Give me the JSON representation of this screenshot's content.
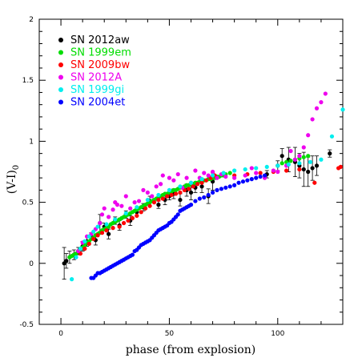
{
  "chart_data": {
    "type": "scatter",
    "xlabel": "phase (from explosion)",
    "ylabel_main": "(V-I)",
    "ylabel_sub": "0",
    "xlim": [
      -10,
      130
    ],
    "ylim": [
      -0.5,
      2
    ],
    "xticks": [
      0,
      50,
      100
    ],
    "yticks": [
      -0.5,
      0,
      0.5,
      1,
      1.5,
      2
    ],
    "yticklabels": [
      "-0.5",
      "0",
      "0.5",
      "1",
      "1.5",
      "2"
    ],
    "legend_position": "top-left",
    "series": [
      {
        "name": "SN 2012aw",
        "color": "#000000",
        "errorbars": true,
        "points": [
          [
            1.5,
            0.0,
            0.13
          ],
          [
            2.5,
            0.02,
            0.06
          ],
          [
            4,
            0.05,
            0.05
          ],
          [
            6,
            0.07,
            0.04
          ],
          [
            8,
            0.1,
            0.03
          ],
          [
            10,
            0.14,
            0.04
          ],
          [
            12,
            0.18,
            0.04
          ],
          [
            14,
            0.22,
            0.03
          ],
          [
            16,
            0.19,
            0.04
          ],
          [
            18,
            0.33,
            0.07
          ],
          [
            20,
            0.3,
            0.03
          ],
          [
            22,
            0.24,
            0.04
          ],
          [
            25,
            0.35,
            0.03
          ],
          [
            27,
            0.31,
            0.04
          ],
          [
            30,
            0.4,
            0.03
          ],
          [
            32,
            0.35,
            0.04
          ],
          [
            35,
            0.42,
            0.03
          ],
          [
            38,
            0.46,
            0.03
          ],
          [
            41,
            0.51,
            0.04
          ],
          [
            45,
            0.48,
            0.03
          ],
          [
            48,
            0.52,
            0.04
          ],
          [
            50,
            0.55,
            0.03
          ],
          [
            52,
            0.57,
            0.04
          ],
          [
            55,
            0.52,
            0.05
          ],
          [
            58,
            0.6,
            0.05
          ],
          [
            60,
            0.58,
            0.06
          ],
          [
            62,
            0.62,
            0.04
          ],
          [
            65,
            0.63,
            0.05
          ],
          [
            68,
            0.55,
            0.06
          ],
          [
            70,
            0.67,
            0.07
          ],
          [
            95,
            0.73,
            0.03
          ],
          [
            100,
            0.8,
            0.04
          ],
          [
            102,
            0.88,
            0.06
          ],
          [
            105,
            0.85,
            0.1
          ],
          [
            108,
            0.83,
            0.12
          ],
          [
            110,
            0.8,
            0.1
          ],
          [
            112,
            0.77,
            0.14
          ],
          [
            114,
            0.75,
            0.12
          ],
          [
            116,
            0.78,
            0.1
          ],
          [
            118,
            0.8,
            0.08
          ],
          [
            124,
            0.9,
            0.03
          ]
        ]
      },
      {
        "name": "SN 1999em",
        "color": "#00dd00",
        "points": [
          [
            4,
            0.05
          ],
          [
            5,
            0.06
          ],
          [
            6,
            0.07
          ],
          [
            7,
            0.08
          ],
          [
            8,
            0.1
          ],
          [
            9,
            0.12
          ],
          [
            10,
            0.13
          ],
          [
            11,
            0.15
          ],
          [
            12,
            0.17
          ],
          [
            13,
            0.18
          ],
          [
            14,
            0.2
          ],
          [
            15,
            0.21
          ],
          [
            16,
            0.23
          ],
          [
            17,
            0.24
          ],
          [
            18,
            0.25
          ],
          [
            19,
            0.27
          ],
          [
            20,
            0.28
          ],
          [
            21,
            0.29
          ],
          [
            22,
            0.3
          ],
          [
            23,
            0.32
          ],
          [
            24,
            0.33
          ],
          [
            25,
            0.34
          ],
          [
            26,
            0.35
          ],
          [
            27,
            0.36
          ],
          [
            28,
            0.37
          ],
          [
            29,
            0.38
          ],
          [
            30,
            0.39
          ],
          [
            31,
            0.4
          ],
          [
            32,
            0.41
          ],
          [
            33,
            0.42
          ],
          [
            34,
            0.43
          ],
          [
            35,
            0.44
          ],
          [
            36,
            0.45
          ],
          [
            37,
            0.46
          ],
          [
            38,
            0.47
          ],
          [
            39,
            0.48
          ],
          [
            40,
            0.49
          ],
          [
            41,
            0.5
          ],
          [
            42,
            0.51
          ],
          [
            43,
            0.52
          ],
          [
            44,
            0.53
          ],
          [
            45,
            0.54
          ],
          [
            46,
            0.55
          ],
          [
            47,
            0.56
          ],
          [
            48,
            0.57
          ],
          [
            49,
            0.57
          ],
          [
            50,
            0.58
          ],
          [
            51,
            0.59
          ],
          [
            52,
            0.6
          ],
          [
            53,
            0.6
          ],
          [
            54,
            0.61
          ],
          [
            55,
            0.62
          ],
          [
            56,
            0.62
          ],
          [
            57,
            0.63
          ],
          [
            58,
            0.64
          ],
          [
            59,
            0.64
          ],
          [
            60,
            0.65
          ],
          [
            61,
            0.65
          ],
          [
            62,
            0.66
          ],
          [
            63,
            0.66
          ],
          [
            64,
            0.67
          ],
          [
            65,
            0.67
          ],
          [
            66,
            0.68
          ],
          [
            67,
            0.68
          ],
          [
            68,
            0.69
          ],
          [
            69,
            0.69
          ],
          [
            70,
            0.7
          ],
          [
            71,
            0.7
          ],
          [
            72,
            0.71
          ],
          [
            73,
            0.71
          ],
          [
            74,
            0.72
          ],
          [
            75,
            0.72
          ],
          [
            76,
            0.73
          ],
          [
            78,
            0.74
          ],
          [
            102,
            0.82
          ],
          [
            104,
            0.83
          ],
          [
            106,
            0.84
          ],
          [
            108,
            0.85
          ],
          [
            110,
            0.86
          ],
          [
            112,
            0.87
          ],
          [
            114,
            0.88
          ]
        ]
      },
      {
        "name": "SN 2009bw",
        "color": "#ff0000",
        "points": [
          [
            9,
            0.08
          ],
          [
            11,
            0.12
          ],
          [
            13,
            0.16
          ],
          [
            15,
            0.2
          ],
          [
            17,
            0.23
          ],
          [
            19,
            0.25
          ],
          [
            21,
            0.27
          ],
          [
            24,
            0.29
          ],
          [
            27,
            0.3
          ],
          [
            29,
            0.33
          ],
          [
            31,
            0.35
          ],
          [
            33,
            0.37
          ],
          [
            35,
            0.39
          ],
          [
            37,
            0.42
          ],
          [
            39,
            0.45
          ],
          [
            41,
            0.47
          ],
          [
            43,
            0.5
          ],
          [
            45,
            0.52
          ],
          [
            47,
            0.53
          ],
          [
            49,
            0.55
          ],
          [
            51,
            0.56
          ],
          [
            53,
            0.57
          ],
          [
            55,
            0.58
          ],
          [
            57,
            0.6
          ],
          [
            59,
            0.61
          ],
          [
            61,
            0.63
          ],
          [
            63,
            0.65
          ],
          [
            65,
            0.66
          ],
          [
            67,
            0.68
          ],
          [
            69,
            0.7
          ],
          [
            71,
            0.72
          ],
          [
            80,
            0.72
          ],
          [
            86,
            0.73
          ],
          [
            92,
            0.74
          ],
          [
            98,
            0.75
          ],
          [
            104,
            0.76
          ],
          [
            110,
            0.77
          ],
          [
            117,
            0.66
          ],
          [
            128,
            0.78
          ],
          [
            129,
            0.79
          ]
        ]
      },
      {
        "name": "SN 2012A",
        "color": "#ee00ee",
        "points": [
          [
            8,
            0.1
          ],
          [
            10,
            0.17
          ],
          [
            12,
            0.22
          ],
          [
            14,
            0.24
          ],
          [
            16,
            0.28
          ],
          [
            18,
            0.33
          ],
          [
            19,
            0.4
          ],
          [
            20,
            0.45
          ],
          [
            22,
            0.38
          ],
          [
            24,
            0.44
          ],
          [
            25,
            0.5
          ],
          [
            26,
            0.48
          ],
          [
            28,
            0.47
          ],
          [
            30,
            0.55
          ],
          [
            32,
            0.45
          ],
          [
            34,
            0.5
          ],
          [
            36,
            0.51
          ],
          [
            38,
            0.6
          ],
          [
            40,
            0.58
          ],
          [
            42,
            0.55
          ],
          [
            44,
            0.63
          ],
          [
            46,
            0.65
          ],
          [
            47,
            0.72
          ],
          [
            50,
            0.7
          ],
          [
            52,
            0.68
          ],
          [
            54,
            0.73
          ],
          [
            56,
            0.62
          ],
          [
            58,
            0.7
          ],
          [
            60,
            0.66
          ],
          [
            62,
            0.76
          ],
          [
            64,
            0.7
          ],
          [
            66,
            0.74
          ],
          [
            68,
            0.72
          ],
          [
            70,
            0.75
          ],
          [
            72,
            0.7
          ],
          [
            74,
            0.73
          ],
          [
            76,
            0.71
          ],
          [
            80,
            0.7
          ],
          [
            85,
            0.72
          ],
          [
            88,
            0.78
          ],
          [
            90,
            0.74
          ],
          [
            94,
            0.7
          ],
          [
            98,
            0.76
          ],
          [
            100,
            0.75
          ],
          [
            104,
            0.8
          ],
          [
            106,
            0.92
          ],
          [
            108,
            0.85
          ],
          [
            110,
            0.88
          ],
          [
            112,
            0.95
          ],
          [
            114,
            1.05
          ],
          [
            116,
            1.18
          ],
          [
            118,
            1.27
          ],
          [
            120,
            1.32
          ],
          [
            122,
            1.39
          ]
        ]
      },
      {
        "name": "SN 1999gi",
        "color": "#00eeee",
        "points": [
          [
            5,
            -0.13
          ],
          [
            7,
            0.05
          ],
          [
            9,
            0.12
          ],
          [
            11,
            0.18
          ],
          [
            13,
            0.22
          ],
          [
            15,
            0.26
          ],
          [
            17,
            0.3
          ],
          [
            21,
            0.32
          ],
          [
            25,
            0.36
          ],
          [
            30,
            0.41
          ],
          [
            35,
            0.46
          ],
          [
            40,
            0.52
          ],
          [
            45,
            0.56
          ],
          [
            50,
            0.6
          ],
          [
            55,
            0.63
          ],
          [
            60,
            0.66
          ],
          [
            65,
            0.69
          ],
          [
            70,
            0.72
          ],
          [
            75,
            0.74
          ],
          [
            80,
            0.76
          ],
          [
            85,
            0.77
          ],
          [
            90,
            0.78
          ],
          [
            95,
            0.79
          ],
          [
            100,
            0.8
          ],
          [
            105,
            0.81
          ],
          [
            110,
            0.82
          ],
          [
            115,
            0.83
          ],
          [
            120,
            0.85
          ],
          [
            125,
            1.04
          ],
          [
            130,
            1.26
          ]
        ]
      },
      {
        "name": "SN 2004et",
        "color": "#0000ff",
        "points": [
          [
            14,
            -0.12
          ],
          [
            15,
            -0.12
          ],
          [
            16,
            -0.1
          ],
          [
            17,
            -0.08
          ],
          [
            18,
            -0.08
          ],
          [
            19,
            -0.07
          ],
          [
            20,
            -0.06
          ],
          [
            21,
            -0.05
          ],
          [
            22,
            -0.04
          ],
          [
            23,
            -0.03
          ],
          [
            24,
            -0.02
          ],
          [
            25,
            -0.01
          ],
          [
            26,
            0.0
          ],
          [
            27,
            0.01
          ],
          [
            28,
            0.02
          ],
          [
            29,
            0.03
          ],
          [
            30,
            0.04
          ],
          [
            31,
            0.05
          ],
          [
            32,
            0.06
          ],
          [
            33,
            0.07
          ],
          [
            34,
            0.1
          ],
          [
            35,
            0.11
          ],
          [
            36,
            0.13
          ],
          [
            37,
            0.15
          ],
          [
            38,
            0.16
          ],
          [
            39,
            0.17
          ],
          [
            40,
            0.18
          ],
          [
            41,
            0.19
          ],
          [
            42,
            0.21
          ],
          [
            43,
            0.23
          ],
          [
            44,
            0.25
          ],
          [
            45,
            0.27
          ],
          [
            46,
            0.28
          ],
          [
            47,
            0.29
          ],
          [
            48,
            0.3
          ],
          [
            49,
            0.31
          ],
          [
            50,
            0.33
          ],
          [
            51,
            0.34
          ],
          [
            52,
            0.36
          ],
          [
            53,
            0.38
          ],
          [
            54,
            0.4
          ],
          [
            55,
            0.43
          ],
          [
            56,
            0.44
          ],
          [
            57,
            0.45
          ],
          [
            58,
            0.46
          ],
          [
            59,
            0.47
          ],
          [
            60,
            0.48
          ],
          [
            62,
            0.51
          ],
          [
            64,
            0.53
          ],
          [
            66,
            0.54
          ],
          [
            68,
            0.56
          ],
          [
            70,
            0.58
          ],
          [
            72,
            0.6
          ],
          [
            74,
            0.61
          ],
          [
            76,
            0.62
          ],
          [
            78,
            0.63
          ],
          [
            80,
            0.64
          ],
          [
            82,
            0.66
          ],
          [
            84,
            0.67
          ],
          [
            86,
            0.68
          ],
          [
            88,
            0.69
          ],
          [
            90,
            0.7
          ],
          [
            92,
            0.71
          ],
          [
            94,
            0.72
          ]
        ]
      }
    ]
  }
}
